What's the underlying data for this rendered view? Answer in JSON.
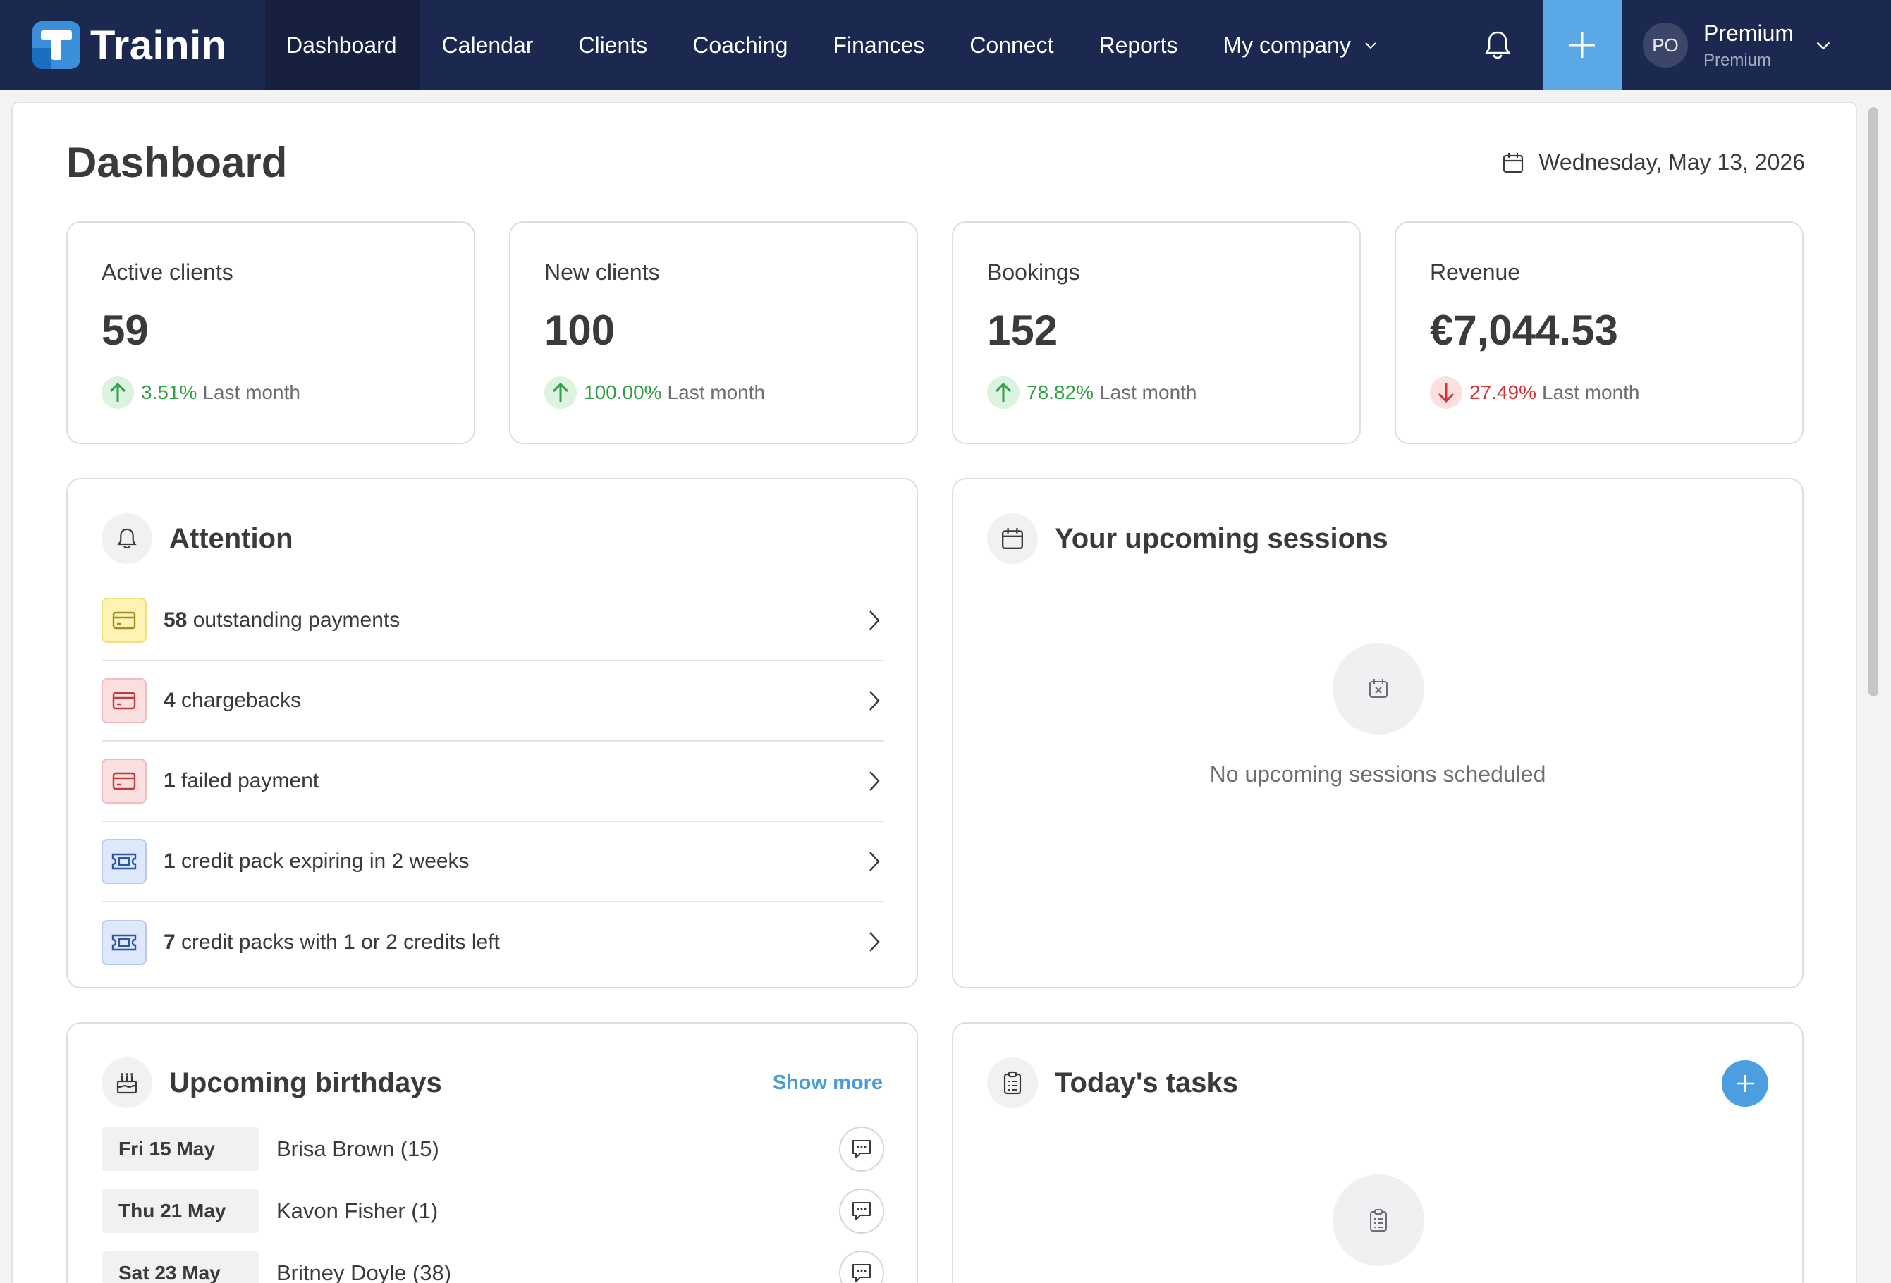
{
  "nav": {
    "brand": "Trainin",
    "links": [
      "Dashboard",
      "Calendar",
      "Clients",
      "Coaching",
      "Finances",
      "Connect",
      "Reports",
      "My company"
    ],
    "active": "Dashboard",
    "user_initials": "PO",
    "user_name": "Premium",
    "user_plan": "Premium"
  },
  "page": {
    "title": "Dashboard",
    "date": "Wednesday, May 13, 2026"
  },
  "stats": [
    {
      "label": "Active clients",
      "value": "59",
      "pct": "3.51%",
      "direction": "up",
      "period": "Last month"
    },
    {
      "label": "New clients",
      "value": "100",
      "pct": "100.00%",
      "direction": "up",
      "period": "Last month"
    },
    {
      "label": "Bookings",
      "value": "152",
      "pct": "78.82%",
      "direction": "up",
      "period": "Last month"
    },
    {
      "label": "Revenue",
      "value": "€7,044.53",
      "pct": "27.49%",
      "direction": "down",
      "period": "Last month"
    }
  ],
  "attention": {
    "title": "Attention",
    "items": [
      {
        "count": "58",
        "text": "outstanding payments",
        "icon": "credit-card-icon",
        "tone": "yellow"
      },
      {
        "count": "4",
        "text": "chargebacks",
        "icon": "credit-card-icon",
        "tone": "red"
      },
      {
        "count": "1",
        "text": "failed payment",
        "icon": "credit-card-icon",
        "tone": "red"
      },
      {
        "count": "1",
        "text": "credit pack expiring in 2 weeks",
        "icon": "ticket-icon",
        "tone": "blue"
      },
      {
        "count": "7",
        "text": "credit packs with 1 or 2 credits left",
        "icon": "ticket-icon",
        "tone": "blue"
      }
    ]
  },
  "sessions": {
    "title": "Your upcoming sessions",
    "empty_text": "No upcoming sessions scheduled"
  },
  "birthdays": {
    "title": "Upcoming birthdays",
    "show_more": "Show more",
    "items": [
      {
        "date": "Fri 15 May",
        "name": "Brisa Brown (15)"
      },
      {
        "date": "Thu 21 May",
        "name": "Kavon Fisher (1)"
      },
      {
        "date": "Sat 23 May",
        "name": "Britney Doyle (38)"
      }
    ]
  },
  "tasks": {
    "title": "Today's tasks"
  },
  "colors": {
    "nav_bg": "#1b2850",
    "accent": "#5aa8e6",
    "up": "#2fa043",
    "down": "#d63333"
  }
}
